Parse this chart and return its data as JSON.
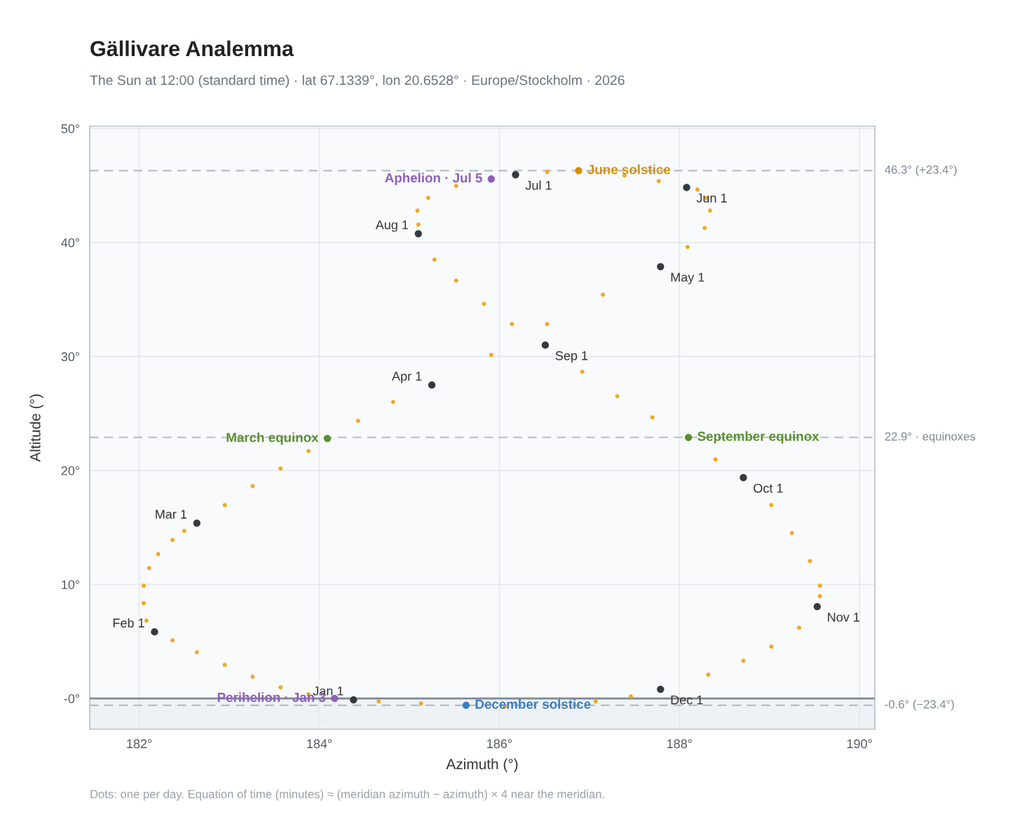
{
  "chart_data": {
    "type": "scatter",
    "title": "Gällivare Analemma",
    "subtitle": "The Sun at 12:00 (standard time) · lat 67.1339°, lon 20.6528° · Europe/Stockholm · 2026",
    "xlabel": "Azimuth (°)",
    "ylabel": "Altitude (°)",
    "annotations": [
      "Dots: one per day. Equation of time (minutes) ≈ (meridian azimuth − azimuth) × 4 near the meridian."
    ],
    "xlim": [
      181.45,
      190.17
    ],
    "ylim": [
      -2.7,
      50.2
    ],
    "xticks": [
      {
        "value": 182,
        "label": "182°"
      },
      {
        "value": 184,
        "label": "184°"
      },
      {
        "value": 186,
        "label": "186°"
      },
      {
        "value": 188,
        "label": "188°"
      },
      {
        "value": 190,
        "label": "190°"
      }
    ],
    "yticks": [
      {
        "value": 0,
        "label": "-0°"
      },
      {
        "value": 10,
        "label": "10°"
      },
      {
        "value": 20,
        "label": "20°"
      },
      {
        "value": 30,
        "label": "30°"
      },
      {
        "value": 40,
        "label": "40°"
      },
      {
        "value": 50,
        "label": "50°"
      }
    ],
    "grid": true,
    "legend": false,
    "marker": "circle",
    "bands": [
      {
        "axis": "y",
        "from": -2.7,
        "to": 0,
        "color": "#eef2f6"
      }
    ],
    "ref_lines": [
      {
        "axis": "y",
        "value": 46.3,
        "label": "46.3° (+23.4°)",
        "color": "#b4bec8",
        "line_style": "dashed"
      },
      {
        "axis": "y",
        "value": 22.9,
        "label": "22.9° · equinoxes",
        "color": "#b4bec8",
        "line_style": "dashed"
      },
      {
        "axis": "y",
        "value": -0.6,
        "label": "-0.6° (−23.4°)",
        "color": "#b4bec8",
        "line_style": "dashed"
      },
      {
        "axis": "y",
        "value": 0,
        "color": "#7d8894",
        "line_style": "solid"
      }
    ],
    "series": [
      {
        "color": "#f5a623",
        "x": [
          183.88,
          183.57,
          183.26,
          182.95,
          182.64,
          182.37,
          182.08,
          182.05,
          182.05,
          182.11,
          182.21,
          182.37,
          182.5,
          182.95,
          183.26,
          183.57,
          183.88,
          184.43,
          184.82,
          185.91,
          186.53,
          187.15,
          188.09,
          188.28,
          188.34,
          188.3,
          188.2,
          187.77,
          187.39,
          186.53,
          185.52,
          185.21,
          185.09,
          185.1,
          185.28,
          185.52,
          185.83,
          186.14,
          186.92,
          187.31,
          187.7,
          188.4,
          189.02,
          189.25,
          189.45,
          189.56,
          189.56,
          189.33,
          189.02,
          188.71,
          188.32,
          187.46,
          187.07,
          186.53,
          186.06,
          185.13,
          184.66
        ],
        "values": [
          0.37,
          0.98,
          1.91,
          2.95,
          4.06,
          5.1,
          6.83,
          8.36,
          9.9,
          11.44,
          12.67,
          13.9,
          14.7,
          16.97,
          18.63,
          20.17,
          21.71,
          24.35,
          26.01,
          30.14,
          32.84,
          35.42,
          39.61,
          41.27,
          42.8,
          43.91,
          44.65,
          45.39,
          45.88,
          46.19,
          44.96,
          43.91,
          42.8,
          41.57,
          38.5,
          36.65,
          34.62,
          32.84,
          28.66,
          26.51,
          24.66,
          20.97,
          16.97,
          14.51,
          12.05,
          9.9,
          8.98,
          6.21,
          4.55,
          3.32,
          2.09,
          0.18,
          -0.25,
          null,
          -0.7,
          -0.43,
          -0.25
        ]
      },
      {
        "color": "#343a40",
        "x": [
          184.38,
          182.17,
          182.64,
          185.25,
          187.79,
          188.08,
          186.18,
          185.1,
          186.51,
          188.71,
          189.53,
          187.79
        ],
        "values": [
          -0.12,
          5.84,
          15.38,
          27.49,
          37.88,
          44.83,
          45.94,
          40.77,
          31.0,
          19.37,
          8.06,
          0.8
        ],
        "value_labels": [
          "Jan 1",
          "Feb 1",
          "Mar 1",
          "Apr 1",
          "May 1",
          "Jun 1",
          "Jul 1",
          "Aug 1",
          "Sep 1",
          "Oct 1",
          "Nov 1",
          "Dec 1"
        ]
      },
      {
        "name": "Perihelion · Jan 3",
        "color": "#8e5fb8",
        "x": [
          184.17
        ],
        "values": [
          0
        ]
      },
      {
        "name": "Aphelion · Jul 5",
        "color": "#8e5fb8",
        "x": [
          185.91
        ],
        "values": [
          45.57
        ]
      },
      {
        "name": "March equinox",
        "color": "#5b8f2e",
        "x": [
          184.09
        ],
        "values": [
          22.8
        ]
      },
      {
        "name": "June solstice",
        "color": "#d58f0a",
        "x": [
          186.88
        ],
        "values": [
          46.3
        ]
      },
      {
        "name": "September equinox",
        "color": "#5b8f2e",
        "x": [
          188.1
        ],
        "values": [
          22.9
        ]
      },
      {
        "name": "December solstice",
        "color": "#3d7cc0",
        "x": [
          185.63
        ],
        "values": [
          -0.6
        ]
      }
    ]
  }
}
